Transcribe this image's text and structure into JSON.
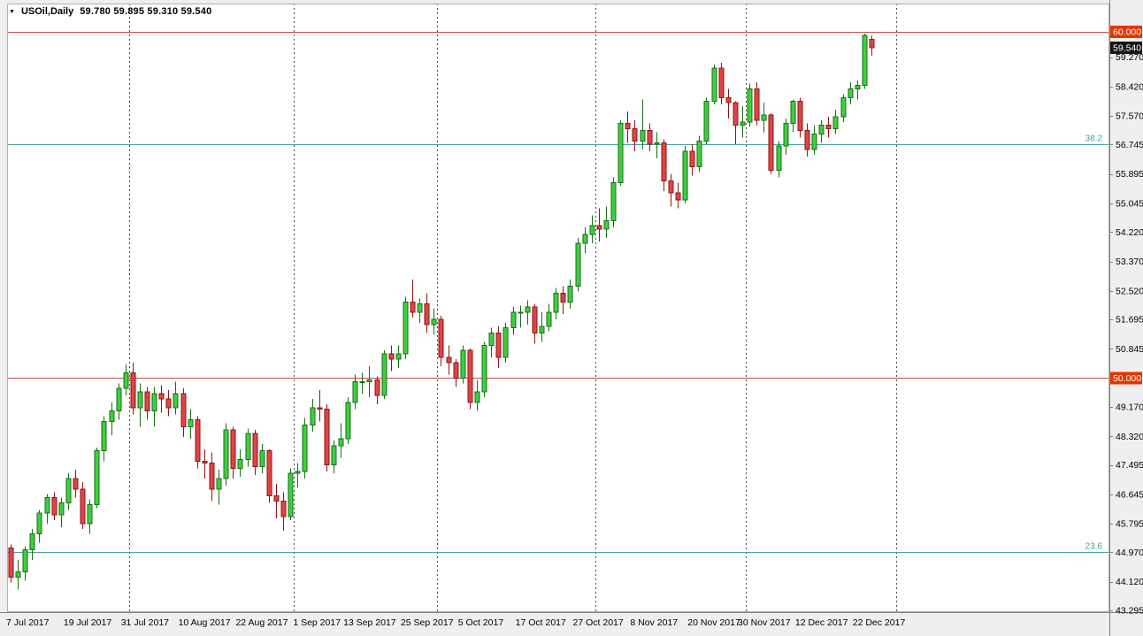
{
  "header": {
    "dropdown_glyph": "▼",
    "symbol_label": "USOil,Daily",
    "ohlc": "59.780 59.895 59.310 59.540"
  },
  "colors": {
    "window_bg": "#efefef",
    "plot_bg": "#ffffff",
    "border": "#b0b0b0",
    "axis_line": "#7f7f7f",
    "axis_text": "#000000",
    "separator": "#4a4a4a",
    "hline": "#c24a4a",
    "fib": "#4aa0a0",
    "badge_red": "#e43400",
    "badge_black": "#161616",
    "up_fill": "#3fce3f",
    "up_stroke": "#176e17",
    "down_fill": "#e14444",
    "down_stroke": "#8c1616"
  },
  "price_axis": {
    "ticks": [
      {
        "label": "60.000",
        "value": 60.0,
        "badge": "red"
      },
      {
        "label": "59.540",
        "value": 59.54,
        "badge": "black"
      },
      {
        "label": "59.270",
        "value": 59.27,
        "badge": "none"
      },
      {
        "label": "58.420",
        "value": 58.42,
        "badge": "none"
      },
      {
        "label": "57.570",
        "value": 57.57,
        "badge": "none"
      },
      {
        "label": "56.745",
        "value": 56.745,
        "badge": "none"
      },
      {
        "label": "55.895",
        "value": 55.895,
        "badge": "none"
      },
      {
        "label": "55.045",
        "value": 55.045,
        "badge": "none"
      },
      {
        "label": "54.220",
        "value": 54.22,
        "badge": "none"
      },
      {
        "label": "53.370",
        "value": 53.37,
        "badge": "none"
      },
      {
        "label": "52.520",
        "value": 52.52,
        "badge": "none"
      },
      {
        "label": "51.695",
        "value": 51.695,
        "badge": "none"
      },
      {
        "label": "50.845",
        "value": 50.845,
        "badge": "none"
      },
      {
        "label": "50.000",
        "value": 50.0,
        "badge": "red"
      },
      {
        "label": "49.170",
        "value": 49.17,
        "badge": "none"
      },
      {
        "label": "48.320",
        "value": 48.32,
        "badge": "none"
      },
      {
        "label": "47.495",
        "value": 47.495,
        "badge": "none"
      },
      {
        "label": "46.645",
        "value": 46.645,
        "badge": "none"
      },
      {
        "label": "45.795",
        "value": 45.795,
        "badge": "none"
      },
      {
        "label": "44.970",
        "value": 44.97,
        "badge": "none"
      },
      {
        "label": "44.120",
        "value": 44.12,
        "badge": "none"
      },
      {
        "label": "43.295",
        "value": 43.295,
        "badge": "none"
      }
    ]
  },
  "time_axis": {
    "labels": [
      {
        "text": "7 Jul 2017",
        "bar": 0
      },
      {
        "text": "19 Jul 2017",
        "bar": 8
      },
      {
        "text": "31 Jul 2017",
        "bar": 16
      },
      {
        "text": "10 Aug 2017",
        "bar": 24
      },
      {
        "text": "22 Aug 2017",
        "bar": 32
      },
      {
        "text": "1 Sep 2017",
        "bar": 40
      },
      {
        "text": "13 Sep 2017",
        "bar": 47
      },
      {
        "text": "25 Sep 2017",
        "bar": 55
      },
      {
        "text": "5 Oct 2017",
        "bar": 63
      },
      {
        "text": "17 Oct 2017",
        "bar": 71
      },
      {
        "text": "27 Oct 2017",
        "bar": 79
      },
      {
        "text": "8 Nov 2017",
        "bar": 87
      },
      {
        "text": "20 Nov 2017",
        "bar": 95
      },
      {
        "text": "30 Nov 2017",
        "bar": 102
      },
      {
        "text": "12 Dec 2017",
        "bar": 110
      },
      {
        "text": "22 Dec 2017",
        "bar": 118
      }
    ]
  },
  "separators": {
    "bars": [
      17,
      40,
      60,
      82,
      103,
      124
    ]
  },
  "levels": {
    "hlines": [
      {
        "label": "60.000",
        "value": 60.0
      },
      {
        "label": "50.000",
        "value": 50.0
      }
    ],
    "fib": [
      {
        "label": "38.2",
        "value": 56.745
      },
      {
        "label": "23.6",
        "value": 44.97
      }
    ]
  },
  "chart_data": {
    "type": "candlestick",
    "symbol": "USOil",
    "timeframe": "Daily",
    "title": "USOil,Daily",
    "last_quote": {
      "open": 59.78,
      "high": 59.895,
      "low": 59.31,
      "close": 59.54
    },
    "ylim": [
      43.244,
      60.817
    ],
    "legend": "none",
    "grid": "off",
    "columns": [
      "date",
      "open",
      "high",
      "low",
      "close"
    ],
    "series": [
      [
        "2017-07-07",
        45.1,
        45.2,
        44.1,
        44.25
      ],
      [
        "2017-07-10",
        44.25,
        44.75,
        43.9,
        44.4
      ],
      [
        "2017-07-11",
        44.4,
        45.15,
        44.15,
        45.05
      ],
      [
        "2017-07-12",
        45.05,
        45.65,
        44.75,
        45.5
      ],
      [
        "2017-07-13",
        45.5,
        46.2,
        45.25,
        46.1
      ],
      [
        "2017-07-14",
        46.1,
        46.65,
        45.8,
        46.55
      ],
      [
        "2017-07-17",
        46.55,
        46.7,
        45.9,
        46.05
      ],
      [
        "2017-07-18",
        46.05,
        46.55,
        45.7,
        46.4
      ],
      [
        "2017-07-19",
        46.4,
        47.25,
        46.2,
        47.1
      ],
      [
        "2017-07-20",
        47.1,
        47.35,
        46.55,
        46.8
      ],
      [
        "2017-07-21",
        46.8,
        47.0,
        45.65,
        45.8
      ],
      [
        "2017-07-24",
        45.8,
        46.5,
        45.5,
        46.35
      ],
      [
        "2017-07-25",
        46.35,
        48.0,
        46.25,
        47.9
      ],
      [
        "2017-07-26",
        47.9,
        48.9,
        47.6,
        48.75
      ],
      [
        "2017-07-27",
        48.75,
        49.3,
        48.35,
        49.05
      ],
      [
        "2017-07-28",
        49.05,
        49.85,
        48.8,
        49.7
      ],
      [
        "2017-07-31",
        49.7,
        50.4,
        49.5,
        50.15
      ],
      [
        "2017-08-01",
        50.15,
        50.45,
        48.95,
        49.15
      ],
      [
        "2017-08-02",
        49.15,
        49.85,
        48.6,
        49.6
      ],
      [
        "2017-08-03",
        49.6,
        49.75,
        48.8,
        49.05
      ],
      [
        "2017-08-04",
        49.05,
        49.75,
        48.6,
        49.55
      ],
      [
        "2017-08-07",
        49.55,
        49.8,
        49.0,
        49.4
      ],
      [
        "2017-08-08",
        49.4,
        49.65,
        48.9,
        49.15
      ],
      [
        "2017-08-09",
        49.15,
        49.9,
        48.95,
        49.55
      ],
      [
        "2017-08-10",
        49.55,
        49.7,
        48.3,
        48.6
      ],
      [
        "2017-08-11",
        48.6,
        49.1,
        48.25,
        48.8
      ],
      [
        "2017-08-14",
        48.8,
        48.9,
        47.4,
        47.6
      ],
      [
        "2017-08-15",
        47.6,
        47.95,
        47.1,
        47.55
      ],
      [
        "2017-08-16",
        47.55,
        47.85,
        46.45,
        46.8
      ],
      [
        "2017-08-17",
        46.8,
        47.35,
        46.35,
        47.1
      ],
      [
        "2017-08-18",
        47.1,
        48.7,
        46.9,
        48.5
      ],
      [
        "2017-08-21",
        48.5,
        48.6,
        47.1,
        47.4
      ],
      [
        "2017-08-22",
        47.4,
        47.95,
        47.15,
        47.65
      ],
      [
        "2017-08-23",
        47.65,
        48.55,
        47.45,
        48.4
      ],
      [
        "2017-08-24",
        48.4,
        48.5,
        47.2,
        47.45
      ],
      [
        "2017-08-25",
        47.45,
        48.1,
        47.25,
        47.9
      ],
      [
        "2017-08-28",
        47.9,
        47.95,
        46.4,
        46.6
      ],
      [
        "2017-08-29",
        46.6,
        46.95,
        45.95,
        46.45
      ],
      [
        "2017-08-30",
        46.45,
        46.7,
        45.6,
        46.0
      ],
      [
        "2017-08-31",
        46.0,
        47.4,
        45.9,
        47.25
      ],
      [
        "2017-09-01",
        47.25,
        47.55,
        46.85,
        47.3
      ],
      [
        "2017-09-05",
        47.3,
        48.85,
        47.1,
        48.65
      ],
      [
        "2017-09-06",
        48.65,
        49.4,
        48.45,
        49.15
      ],
      [
        "2017-09-07",
        49.15,
        49.65,
        48.75,
        49.1
      ],
      [
        "2017-09-08",
        49.1,
        49.25,
        47.3,
        47.5
      ],
      [
        "2017-09-11",
        47.5,
        48.2,
        47.25,
        48.05
      ],
      [
        "2017-09-12",
        48.05,
        48.7,
        47.7,
        48.25
      ],
      [
        "2017-09-13",
        48.25,
        49.45,
        48.1,
        49.3
      ],
      [
        "2017-09-14",
        49.3,
        50.1,
        49.1,
        49.9
      ],
      [
        "2017-09-15",
        49.9,
        50.15,
        49.55,
        49.9
      ],
      [
        "2017-09-18",
        49.9,
        50.35,
        49.45,
        49.95
      ],
      [
        "2017-09-19",
        49.95,
        50.05,
        49.25,
        49.5
      ],
      [
        "2017-09-20",
        49.5,
        50.8,
        49.4,
        50.7
      ],
      [
        "2017-09-21",
        50.7,
        50.95,
        50.2,
        50.55
      ],
      [
        "2017-09-22",
        50.55,
        50.95,
        50.3,
        50.7
      ],
      [
        "2017-09-25",
        50.7,
        52.35,
        50.55,
        52.2
      ],
      [
        "2017-09-26",
        52.2,
        52.85,
        51.75,
        51.9
      ],
      [
        "2017-09-27",
        51.9,
        52.3,
        51.6,
        52.15
      ],
      [
        "2017-09-28",
        52.15,
        52.45,
        51.3,
        51.55
      ],
      [
        "2017-09-29",
        51.55,
        52.0,
        51.25,
        51.7
      ],
      [
        "2017-10-02",
        51.7,
        51.8,
        50.35,
        50.6
      ],
      [
        "2017-10-03",
        50.6,
        50.95,
        50.1,
        50.45
      ],
      [
        "2017-10-04",
        50.45,
        50.55,
        49.75,
        50.0
      ],
      [
        "2017-10-05",
        50.0,
        50.95,
        49.85,
        50.8
      ],
      [
        "2017-10-06",
        50.8,
        50.85,
        49.1,
        49.3
      ],
      [
        "2017-10-09",
        49.3,
        49.95,
        49.05,
        49.6
      ],
      [
        "2017-10-10",
        49.6,
        51.05,
        49.45,
        50.95
      ],
      [
        "2017-10-11",
        50.95,
        51.45,
        50.6,
        51.3
      ],
      [
        "2017-10-12",
        51.3,
        51.5,
        50.3,
        50.6
      ],
      [
        "2017-10-13",
        50.6,
        51.6,
        50.45,
        51.45
      ],
      [
        "2017-10-16",
        51.45,
        52.05,
        51.25,
        51.9
      ],
      [
        "2017-10-17",
        51.9,
        52.1,
        51.45,
        51.9
      ],
      [
        "2017-10-18",
        51.9,
        52.25,
        51.55,
        52.05
      ],
      [
        "2017-10-19",
        52.05,
        52.15,
        51.0,
        51.3
      ],
      [
        "2017-10-20",
        51.3,
        51.9,
        51.05,
        51.5
      ],
      [
        "2017-10-23",
        51.5,
        52.15,
        51.35,
        51.9
      ],
      [
        "2017-10-24",
        51.9,
        52.6,
        51.7,
        52.45
      ],
      [
        "2017-10-25",
        52.45,
        52.65,
        51.85,
        52.2
      ],
      [
        "2017-10-26",
        52.2,
        52.85,
        52.0,
        52.65
      ],
      [
        "2017-10-27",
        52.65,
        54.05,
        52.5,
        53.9
      ],
      [
        "2017-10-30",
        53.9,
        54.35,
        53.6,
        54.15
      ],
      [
        "2017-10-31",
        54.15,
        54.7,
        53.9,
        54.4
      ],
      [
        "2017-11-01",
        54.4,
        54.9,
        53.95,
        54.3
      ],
      [
        "2017-11-02",
        54.3,
        54.95,
        54.05,
        54.55
      ],
      [
        "2017-11-03",
        54.55,
        55.8,
        54.35,
        55.65
      ],
      [
        "2017-11-06",
        55.65,
        57.45,
        55.55,
        57.35
      ],
      [
        "2017-11-07",
        57.35,
        57.7,
        56.8,
        57.2
      ],
      [
        "2017-11-08",
        57.2,
        57.45,
        56.55,
        56.85
      ],
      [
        "2017-11-09",
        56.85,
        58.05,
        56.6,
        57.15
      ],
      [
        "2017-11-10",
        57.15,
        57.35,
        56.55,
        56.75
      ],
      [
        "2017-11-13",
        56.75,
        57.1,
        56.35,
        56.8
      ],
      [
        "2017-11-14",
        56.8,
        56.9,
        55.4,
        55.7
      ],
      [
        "2017-11-15",
        55.7,
        55.9,
        54.95,
        55.35
      ],
      [
        "2017-11-16",
        55.35,
        55.65,
        54.9,
        55.15
      ],
      [
        "2017-11-17",
        55.15,
        56.7,
        55.05,
        56.55
      ],
      [
        "2017-11-20",
        56.55,
        56.75,
        55.85,
        56.1
      ],
      [
        "2017-11-21",
        56.1,
        57.0,
        55.95,
        56.85
      ],
      [
        "2017-11-22",
        56.85,
        58.1,
        56.75,
        58.0
      ],
      [
        "2017-11-24",
        58.0,
        59.05,
        57.9,
        58.95
      ],
      [
        "2017-11-27",
        58.95,
        59.1,
        57.9,
        58.1
      ],
      [
        "2017-11-28",
        58.1,
        58.35,
        57.5,
        57.95
      ],
      [
        "2017-11-29",
        57.95,
        58.0,
        56.75,
        57.3
      ],
      [
        "2017-11-30",
        57.3,
        57.85,
        56.95,
        57.4
      ],
      [
        "2017-12-01",
        57.4,
        58.5,
        57.25,
        58.35
      ],
      [
        "2017-12-04",
        58.35,
        58.55,
        57.3,
        57.45
      ],
      [
        "2017-12-05",
        57.45,
        57.95,
        57.1,
        57.6
      ],
      [
        "2017-12-06",
        57.6,
        57.65,
        55.9,
        56.0
      ],
      [
        "2017-12-07",
        56.0,
        56.85,
        55.8,
        56.7
      ],
      [
        "2017-12-08",
        56.7,
        57.5,
        56.45,
        57.35
      ],
      [
        "2017-12-11",
        57.35,
        58.05,
        57.1,
        58.0
      ],
      [
        "2017-12-12",
        58.0,
        58.1,
        56.95,
        57.15
      ],
      [
        "2017-12-13",
        57.15,
        57.35,
        56.4,
        56.6
      ],
      [
        "2017-12-14",
        56.6,
        57.3,
        56.45,
        57.05
      ],
      [
        "2017-12-15",
        57.05,
        57.45,
        56.8,
        57.3
      ],
      [
        "2017-12-18",
        57.3,
        57.55,
        56.95,
        57.2
      ],
      [
        "2017-12-19",
        57.2,
        57.75,
        57.05,
        57.55
      ],
      [
        "2017-12-20",
        57.55,
        58.2,
        57.4,
        58.1
      ],
      [
        "2017-12-21",
        58.1,
        58.55,
        57.9,
        58.35
      ],
      [
        "2017-12-22",
        58.35,
        58.6,
        58.05,
        58.45
      ],
      [
        "2017-12-26",
        58.45,
        59.95,
        58.35,
        59.9
      ],
      [
        "2017-12-27",
        59.78,
        59.895,
        59.31,
        59.54
      ]
    ]
  }
}
